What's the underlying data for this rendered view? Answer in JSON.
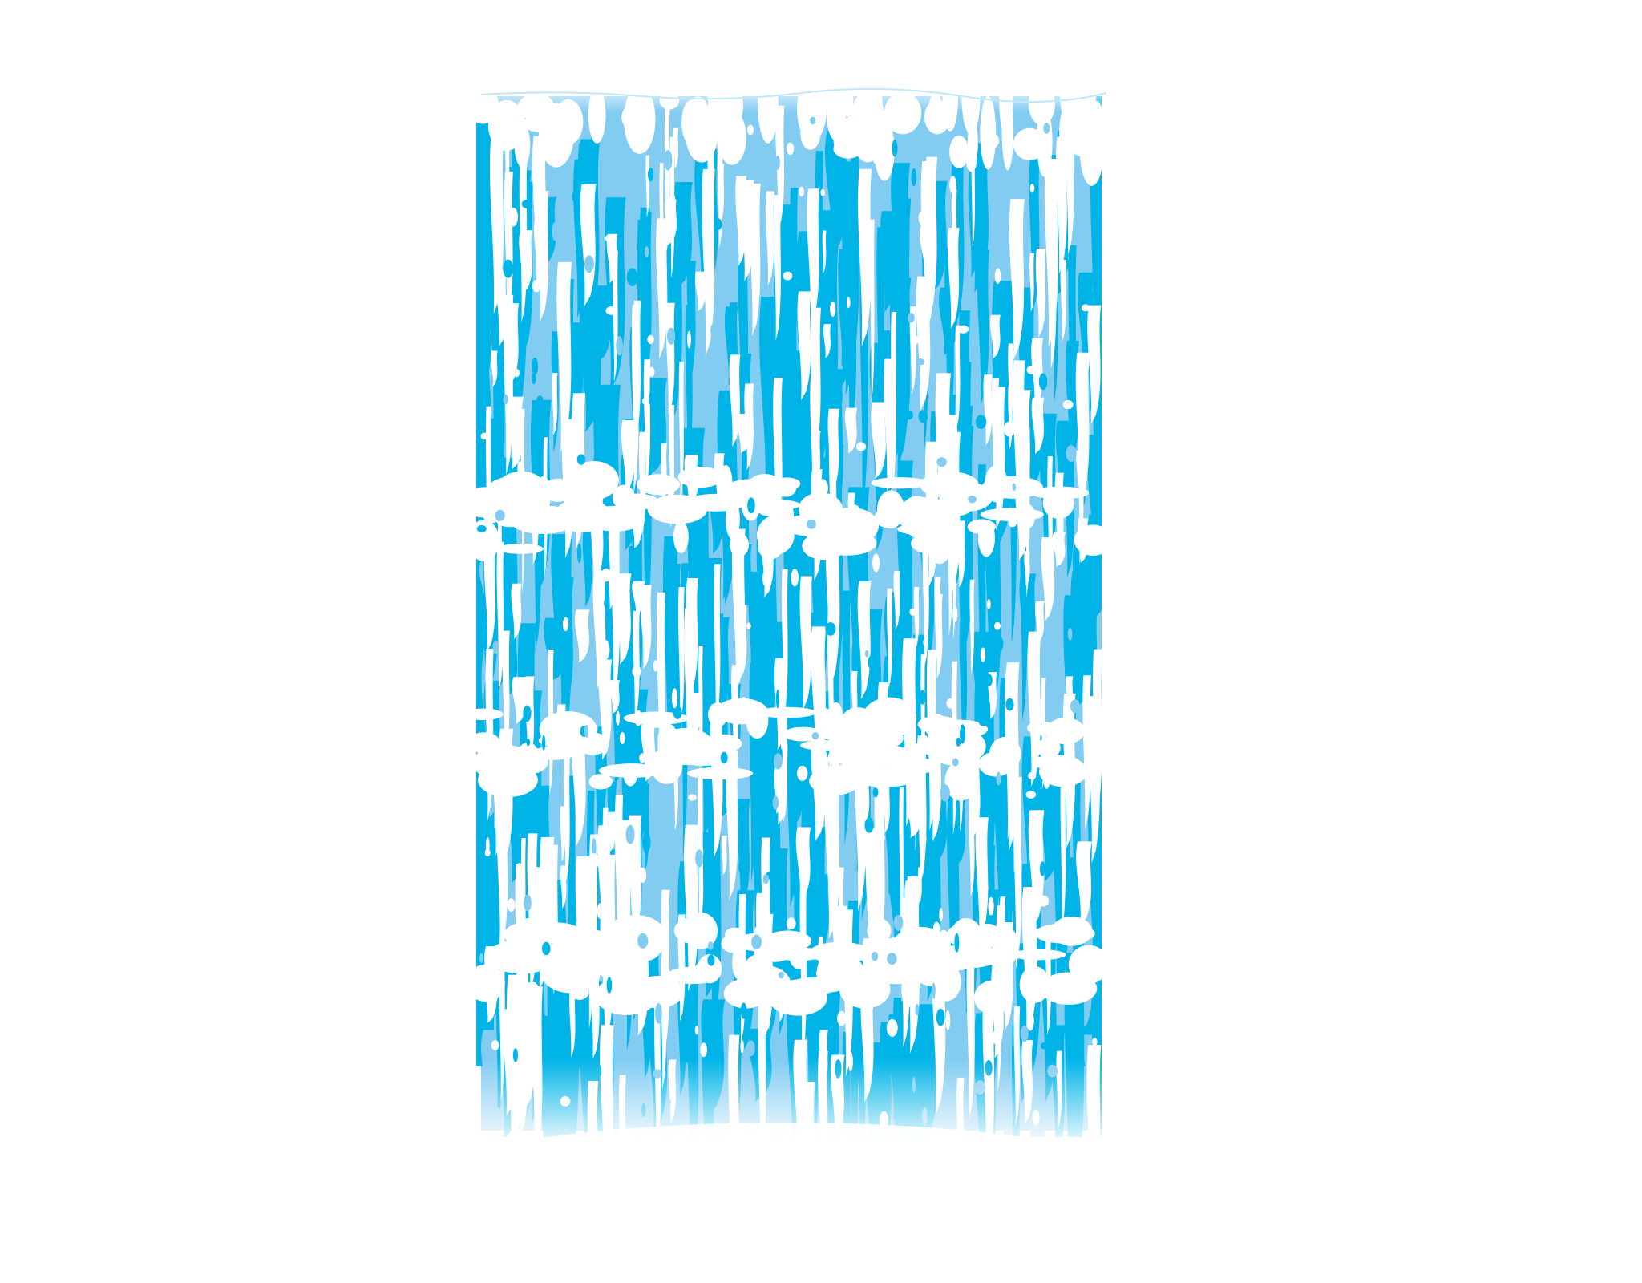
{
  "artwork": {
    "subject": "waterfall",
    "colors": {
      "background": "#ffffff",
      "deep_blue": "#00b4e8",
      "light_blue": "#82ccf2",
      "foam": "#ffffff",
      "mist": "#e8f6fd"
    }
  }
}
